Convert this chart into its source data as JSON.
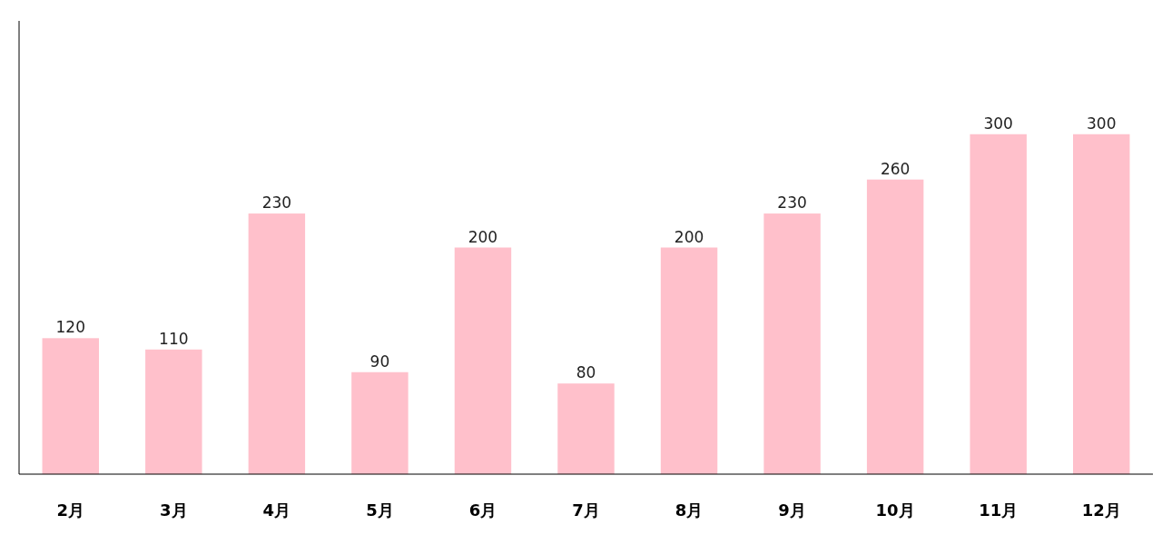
{
  "chart_data": {
    "type": "bar",
    "categories": [
      "2月",
      "3月",
      "4月",
      "5月",
      "6月",
      "7月",
      "8月",
      "9月",
      "10月",
      "11月",
      "12月"
    ],
    "values": [
      120,
      110,
      230,
      90,
      200,
      80,
      200,
      230,
      260,
      300,
      300
    ],
    "color": "#ffc0cb",
    "data_labels": true
  }
}
